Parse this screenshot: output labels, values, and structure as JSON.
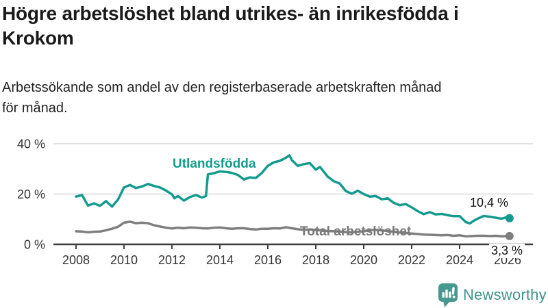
{
  "header": {
    "title": "Högre arbetslöshet bland utrikes- än inrikesfödda i\nKrokom",
    "subtitle": "Arbetssökande som andel av den registerbaserade arbetskraften månad\nför månad."
  },
  "footer": {
    "brand": "Newsworthy"
  },
  "colors": {
    "accent_teal": "#149B8D",
    "line_gray": "#7F7F7F",
    "grid": "#D9D9D9",
    "axis": "#3d3d3d",
    "tick_text": "#333333",
    "logo_teal": "#47988F",
    "brand_text": "#3F948C"
  },
  "chart_data": {
    "type": "line",
    "title": "Högre arbetslöshet bland utrikes- än inrikesfödda i Krokom",
    "subtitle": "Arbetssökande som andel av den registerbaserade arbetskraften månad för månad.",
    "xlabel": "",
    "ylabel": "",
    "unit": "%",
    "grid": "horizontal",
    "legend_position": "inline-labels",
    "xlim": [
      2007.06,
      2027.06
    ],
    "ylim": [
      0,
      42
    ],
    "x_ticks": [
      2008,
      2010,
      2012,
      2014,
      2016,
      2018,
      2020,
      2022,
      2024,
      2026
    ],
    "y_ticks": [
      {
        "value": 0,
        "label": "0 %"
      },
      {
        "value": 20,
        "label": "20 %"
      },
      {
        "value": 40,
        "label": "40 %"
      }
    ],
    "series": [
      {
        "name": "Utlandsfödda",
        "color": "#149B8D",
        "end_label": "10,4 %",
        "end_value": 10.4,
        "points": [
          [
            2008.0,
            19.0
          ],
          [
            2008.25,
            19.6
          ],
          [
            2008.5,
            15.4
          ],
          [
            2008.75,
            16.3
          ],
          [
            2009.0,
            15.3
          ],
          [
            2009.25,
            17.2
          ],
          [
            2009.5,
            15.0
          ],
          [
            2009.75,
            17.8
          ],
          [
            2010.0,
            22.6
          ],
          [
            2010.25,
            23.6
          ],
          [
            2010.5,
            22.4
          ],
          [
            2010.75,
            23.0
          ],
          [
            2011.0,
            24.0
          ],
          [
            2011.25,
            23.2
          ],
          [
            2011.5,
            22.6
          ],
          [
            2011.75,
            21.4
          ],
          [
            2012.0,
            19.9
          ],
          [
            2012.1,
            18.3
          ],
          [
            2012.25,
            19.2
          ],
          [
            2012.5,
            17.4
          ],
          [
            2012.75,
            18.8
          ],
          [
            2013.0,
            19.6
          ],
          [
            2013.25,
            18.6
          ],
          [
            2013.42,
            19.2
          ],
          [
            2013.5,
            27.8
          ],
          [
            2013.75,
            28.3
          ],
          [
            2014.0,
            29.0
          ],
          [
            2014.25,
            28.8
          ],
          [
            2014.5,
            28.4
          ],
          [
            2014.75,
            27.6
          ],
          [
            2015.0,
            25.8
          ],
          [
            2015.25,
            26.6
          ],
          [
            2015.5,
            26.4
          ],
          [
            2015.75,
            28.4
          ],
          [
            2016.0,
            31.2
          ],
          [
            2016.25,
            32.6
          ],
          [
            2016.5,
            33.2
          ],
          [
            2016.75,
            34.4
          ],
          [
            2016.9,
            35.4
          ],
          [
            2017.0,
            33.5
          ],
          [
            2017.25,
            31.2
          ],
          [
            2017.5,
            31.9
          ],
          [
            2017.75,
            32.3
          ],
          [
            2018.0,
            29.7
          ],
          [
            2018.17,
            30.8
          ],
          [
            2018.5,
            26.9
          ],
          [
            2018.75,
            25.1
          ],
          [
            2019.0,
            24.2
          ],
          [
            2019.25,
            21.2
          ],
          [
            2019.5,
            20.1
          ],
          [
            2019.75,
            21.3
          ],
          [
            2020.0,
            20.0
          ],
          [
            2020.25,
            19.0
          ],
          [
            2020.5,
            19.2
          ],
          [
            2020.75,
            17.9
          ],
          [
            2021.0,
            18.3
          ],
          [
            2021.25,
            16.5
          ],
          [
            2021.5,
            15.6
          ],
          [
            2021.75,
            16.0
          ],
          [
            2022.0,
            14.7
          ],
          [
            2022.25,
            13.2
          ],
          [
            2022.5,
            12.0
          ],
          [
            2022.75,
            12.8
          ],
          [
            2023.0,
            11.9
          ],
          [
            2023.25,
            12.1
          ],
          [
            2023.5,
            11.6
          ],
          [
            2023.75,
            11.2
          ],
          [
            2024.0,
            11.2
          ],
          [
            2024.25,
            8.9
          ],
          [
            2024.42,
            8.3
          ],
          [
            2024.58,
            9.3
          ],
          [
            2024.75,
            10.2
          ],
          [
            2025.0,
            11.3
          ],
          [
            2025.25,
            11.0
          ],
          [
            2025.5,
            10.6
          ],
          [
            2025.75,
            10.2
          ],
          [
            2026.0,
            10.9
          ],
          [
            2026.08,
            10.4
          ]
        ]
      },
      {
        "name": "Total arbetslöshet",
        "color": "#7F7F7F",
        "end_label": "3,3 %",
        "end_value": 3.3,
        "points": [
          [
            2008.0,
            5.2
          ],
          [
            2008.25,
            5.1
          ],
          [
            2008.5,
            4.8
          ],
          [
            2008.75,
            5.0
          ],
          [
            2009.0,
            5.1
          ],
          [
            2009.25,
            5.6
          ],
          [
            2009.5,
            6.2
          ],
          [
            2009.75,
            7.0
          ],
          [
            2010.0,
            8.6
          ],
          [
            2010.25,
            9.0
          ],
          [
            2010.5,
            8.4
          ],
          [
            2010.75,
            8.6
          ],
          [
            2011.0,
            8.4
          ],
          [
            2011.25,
            7.6
          ],
          [
            2011.5,
            7.1
          ],
          [
            2011.75,
            6.6
          ],
          [
            2012.0,
            6.3
          ],
          [
            2012.25,
            6.6
          ],
          [
            2012.5,
            6.4
          ],
          [
            2012.75,
            6.7
          ],
          [
            2013.0,
            6.6
          ],
          [
            2013.25,
            6.4
          ],
          [
            2013.5,
            6.3
          ],
          [
            2013.75,
            6.6
          ],
          [
            2014.0,
            6.7
          ],
          [
            2014.25,
            6.4
          ],
          [
            2014.5,
            6.2
          ],
          [
            2014.75,
            6.4
          ],
          [
            2015.0,
            6.4
          ],
          [
            2015.25,
            6.1
          ],
          [
            2015.5,
            5.9
          ],
          [
            2015.75,
            6.2
          ],
          [
            2016.0,
            6.2
          ],
          [
            2016.25,
            6.4
          ],
          [
            2016.5,
            6.3
          ],
          [
            2016.75,
            6.8
          ],
          [
            2017.0,
            6.4
          ],
          [
            2017.25,
            6.0
          ],
          [
            2017.5,
            5.8
          ],
          [
            2017.75,
            5.9
          ],
          [
            2018.0,
            5.7
          ],
          [
            2018.25,
            5.5
          ],
          [
            2018.5,
            5.3
          ],
          [
            2018.75,
            5.2
          ],
          [
            2019.0,
            5.1
          ],
          [
            2019.25,
            4.9
          ],
          [
            2019.5,
            4.8
          ],
          [
            2019.75,
            5.0
          ],
          [
            2020.0,
            5.2
          ],
          [
            2020.25,
            5.6
          ],
          [
            2020.5,
            5.8
          ],
          [
            2020.75,
            5.5
          ],
          [
            2021.0,
            5.3
          ],
          [
            2021.25,
            5.0
          ],
          [
            2021.5,
            4.7
          ],
          [
            2021.75,
            4.5
          ],
          [
            2022.0,
            4.3
          ],
          [
            2022.25,
            4.1
          ],
          [
            2022.5,
            3.9
          ],
          [
            2022.75,
            3.8
          ],
          [
            2023.0,
            3.7
          ],
          [
            2023.25,
            3.6
          ],
          [
            2023.5,
            3.7
          ],
          [
            2023.75,
            3.4
          ],
          [
            2024.0,
            3.6
          ],
          [
            2024.25,
            3.2
          ],
          [
            2024.5,
            3.3
          ],
          [
            2024.75,
            3.4
          ],
          [
            2025.0,
            3.4
          ],
          [
            2025.25,
            3.3
          ],
          [
            2025.5,
            3.4
          ],
          [
            2025.75,
            3.2
          ],
          [
            2026.0,
            3.3
          ],
          [
            2026.08,
            3.3
          ]
        ]
      }
    ]
  }
}
